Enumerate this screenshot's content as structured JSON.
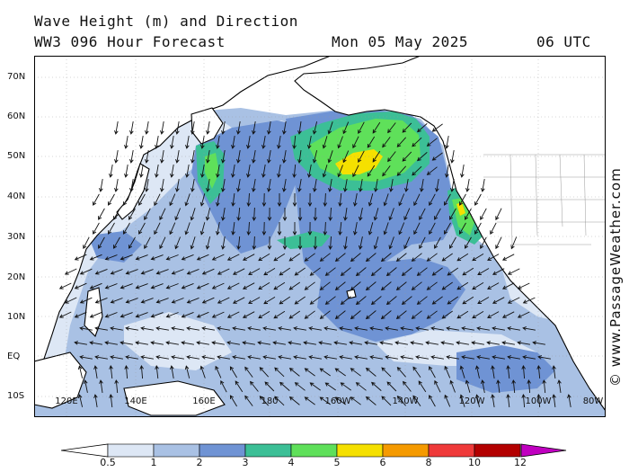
{
  "header": {
    "title": "Wave Height (m) and Direction",
    "model": "WW3 096 Hour Forecast",
    "date": "Mon 05 May 2025",
    "time": "06 UTC"
  },
  "credit": "© www.PassageWeather.com",
  "lat_labels": [
    "70N",
    "60N",
    "50N",
    "40N",
    "30N",
    "20N",
    "10N",
    "EQ",
    "10S"
  ],
  "lon_labels": [
    "120E",
    "140E",
    "160E",
    "180",
    "160W",
    "140W",
    "120W",
    "100W",
    "80W"
  ],
  "legend": {
    "unit": "m",
    "ticks": [
      "0.5",
      "1",
      "2",
      "3",
      "4",
      "5",
      "6",
      "8",
      "10",
      "12"
    ],
    "colors": [
      "#dde7f5",
      "#a9c1e4",
      "#6f93d4",
      "#3cbf96",
      "#5fe05a",
      "#f5e000",
      "#f59a00",
      "#ef3a3a",
      "#b30000",
      "#c000c0"
    ]
  },
  "map": {
    "land_color": "#ffffff",
    "coastline_color": "#000000"
  }
}
